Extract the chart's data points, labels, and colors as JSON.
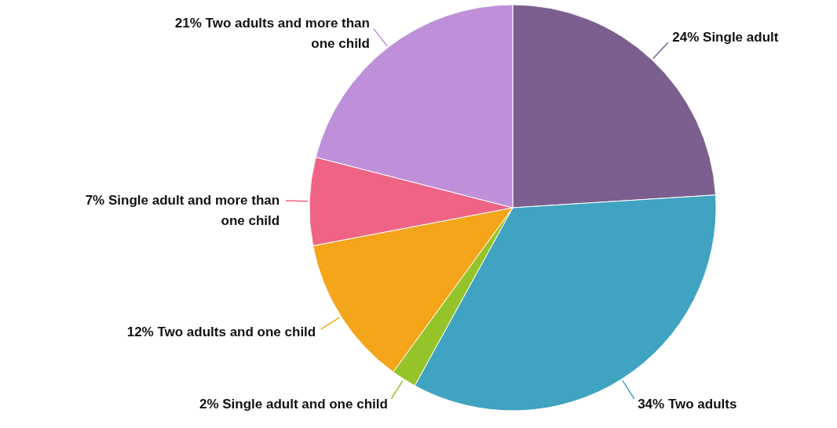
{
  "chart_data": {
    "type": "pie",
    "categories": [
      "Single adult",
      "Two adults",
      "Single adult and one child",
      "Two adults and one child",
      "Single adult and more than one child",
      "Two adults and more than one child"
    ],
    "values": [
      24,
      34,
      2,
      12,
      7,
      21
    ],
    "value_labels": [
      "24%",
      "34%",
      "2%",
      "12%",
      "7%",
      "21%"
    ],
    "colors": [
      "#7b5f8e",
      "#40a3c2",
      "#95c42a",
      "#f4a51a",
      "#ef6484",
      "#bf90da"
    ]
  }
}
